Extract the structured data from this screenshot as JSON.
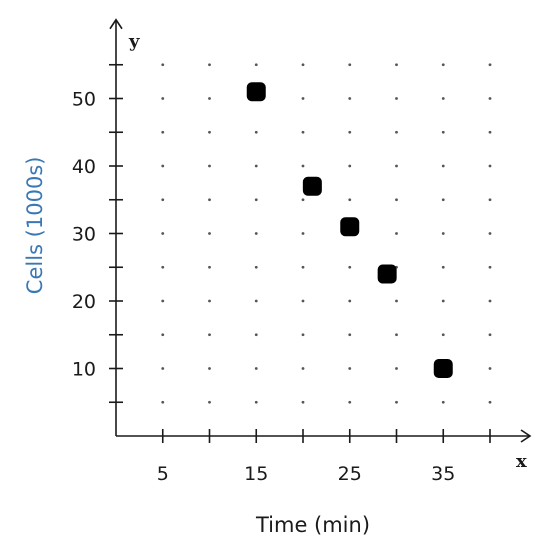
{
  "chart_data": {
    "type": "scatter",
    "x": [
      15,
      21,
      25,
      29,
      35
    ],
    "y": [
      51,
      37,
      31,
      24,
      10
    ],
    "xlabel": "Time (min)",
    "ylabel": "Cells (1000s)",
    "x_axis_letter": "x",
    "y_axis_letter": "y",
    "xlim": [
      0,
      40
    ],
    "ylim": [
      0,
      55
    ],
    "x_ticks": [
      5,
      10,
      15,
      20,
      25,
      30,
      35,
      40
    ],
    "x_tick_labels": [
      "5",
      "15",
      "25",
      "35"
    ],
    "y_ticks": [
      5,
      10,
      15,
      20,
      25,
      30,
      35,
      40,
      45,
      50,
      55
    ],
    "y_tick_labels": [
      "10",
      "20",
      "30",
      "40",
      "50"
    ],
    "grid": "dotted",
    "colors": {
      "ylabel": "#3a78b5",
      "xlabel": "#1a1a1a",
      "axis": "#1a1a1a",
      "points": "#000000",
      "grid": "#555555"
    }
  }
}
